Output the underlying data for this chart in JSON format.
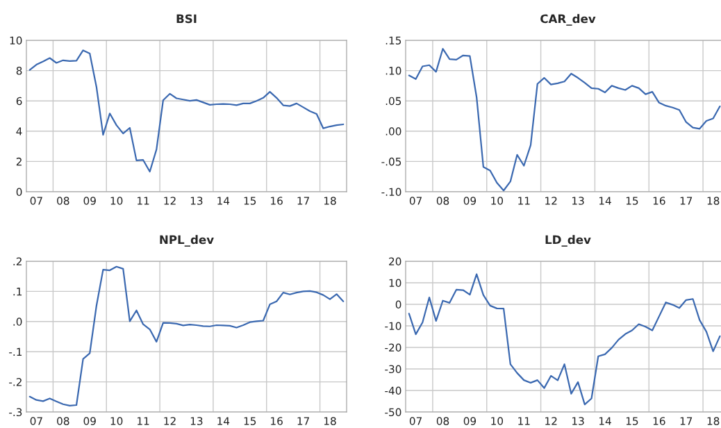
{
  "chart_data": [
    {
      "type": "line",
      "title": "BSI",
      "categories": [
        null,
        "07",
        null,
        null,
        null,
        "08",
        null,
        null,
        null,
        "09",
        null,
        null,
        null,
        "10",
        null,
        null,
        null,
        "11",
        null,
        null,
        null,
        "12",
        null,
        null,
        null,
        "13",
        null,
        null,
        null,
        "14",
        null,
        null,
        null,
        "15",
        null,
        null,
        null,
        "16",
        null,
        null,
        null,
        "17",
        null,
        null,
        null,
        "18",
        null,
        null
      ],
      "series": [
        {
          "color": "#3a68b0",
          "values": [
            8.04,
            8.39,
            8.6,
            8.83,
            8.51,
            8.68,
            8.63,
            8.65,
            9.34,
            9.13,
            6.93,
            3.76,
            5.17,
            4.4,
            3.85,
            4.22,
            2.07,
            2.1,
            1.33,
            2.79,
            6.04,
            6.47,
            6.17,
            6.09,
            6.0,
            6.06,
            5.9,
            5.74,
            5.78,
            5.8,
            5.78,
            5.72,
            5.83,
            5.83,
            6.0,
            6.2,
            6.6,
            6.2,
            5.71,
            5.66,
            5.83,
            5.58,
            5.32,
            5.14,
            4.19,
            4.31,
            4.4,
            4.45
          ]
        }
      ],
      "ylim": [
        0,
        10
      ],
      "yticks": [
        0,
        2,
        4,
        6,
        8,
        10
      ],
      "grid": true,
      "line_style": "solid"
    },
    {
      "type": "line",
      "title": "CAR_dev",
      "categories": [
        null,
        "07",
        null,
        null,
        null,
        "08",
        null,
        null,
        null,
        "09",
        null,
        null,
        null,
        "10",
        null,
        null,
        null,
        "11",
        null,
        null,
        null,
        "12",
        null,
        null,
        null,
        "13",
        null,
        null,
        null,
        "14",
        null,
        null,
        null,
        "15",
        null,
        null,
        null,
        "16",
        null,
        null,
        null,
        "17",
        null,
        null,
        null,
        "18",
        null,
        null
      ],
      "series": [
        {
          "color": "#3a68b0",
          "values": [
            0.092,
            0.086,
            0.107,
            0.109,
            0.098,
            0.136,
            0.119,
            0.118,
            0.125,
            0.124,
            0.056,
            -0.059,
            -0.065,
            -0.085,
            -0.098,
            -0.083,
            -0.039,
            -0.057,
            -0.023,
            0.078,
            0.088,
            0.077,
            0.079,
            0.082,
            0.095,
            0.088,
            0.08,
            0.071,
            0.07,
            0.064,
            0.075,
            0.071,
            0.068,
            0.075,
            0.071,
            0.061,
            0.065,
            0.047,
            0.042,
            0.039,
            0.035,
            0.015,
            0.006,
            0.004,
            0.017,
            0.021,
            0.041,
            null
          ]
        }
      ],
      "ylim": [
        -0.1,
        0.15
      ],
      "yticks": [
        {
          "value": -0.1,
          "label": "-.10"
        },
        {
          "value": -0.05,
          "label": "-.05"
        },
        {
          "value": 0,
          "label": ".00"
        },
        {
          "value": 0.05,
          "label": ".05"
        },
        {
          "value": 0.1,
          "label": ".10"
        },
        {
          "value": 0.15,
          "label": ".15"
        }
      ],
      "grid": true,
      "line_style": "solid"
    },
    {
      "type": "line",
      "title": "NPL_dev",
      "categories": [
        null,
        "07",
        null,
        null,
        null,
        "08",
        null,
        null,
        null,
        "09",
        null,
        null,
        null,
        "10",
        null,
        null,
        null,
        "11",
        null,
        null,
        null,
        "12",
        null,
        null,
        null,
        "13",
        null,
        null,
        null,
        "14",
        null,
        null,
        null,
        "15",
        null,
        null,
        null,
        "16",
        null,
        null,
        null,
        "17",
        null,
        null,
        null,
        "18",
        null,
        null
      ],
      "series": [
        {
          "color": "#3a68b0",
          "values": [
            -0.249,
            -0.26,
            -0.264,
            -0.255,
            -0.265,
            -0.274,
            -0.279,
            -0.277,
            -0.124,
            -0.105,
            0.052,
            0.172,
            0.17,
            0.182,
            0.175,
            0.001,
            0.037,
            -0.009,
            -0.026,
            -0.067,
            -0.004,
            -0.005,
            -0.007,
            -0.013,
            -0.01,
            -0.012,
            -0.015,
            -0.016,
            -0.012,
            -0.013,
            -0.014,
            -0.02,
            -0.012,
            -0.002,
            0.001,
            0.003,
            0.057,
            0.067,
            0.096,
            0.09,
            0.096,
            0.1,
            0.101,
            0.097,
            0.088,
            0.074,
            0.091,
            0.067
          ]
        }
      ],
      "ylim": [
        -0.3,
        0.2
      ],
      "yticks": [
        {
          "value": -0.3,
          "label": "-.3"
        },
        {
          "value": -0.2,
          "label": "-.2"
        },
        {
          "value": -0.1,
          "label": "-.1"
        },
        {
          "value": 0,
          "label": ".0"
        },
        {
          "value": 0.1,
          "label": ".1"
        },
        {
          "value": 0.2,
          "label": ".2"
        }
      ],
      "grid": true,
      "line_style": "solid"
    },
    {
      "type": "line",
      "title": "LD_dev",
      "categories": [
        null,
        "07",
        null,
        null,
        null,
        "08",
        null,
        null,
        null,
        "09",
        null,
        null,
        null,
        "10",
        null,
        null,
        null,
        "11",
        null,
        null,
        null,
        "12",
        null,
        null,
        null,
        "13",
        null,
        null,
        null,
        "14",
        null,
        null,
        null,
        "15",
        null,
        null,
        null,
        "16",
        null,
        null,
        null,
        "17",
        null,
        null,
        null,
        "18",
        null,
        null
      ],
      "series": [
        {
          "color": "#3a68b0",
          "values": [
            -4.3,
            -13.9,
            -8.4,
            3.2,
            -7.7,
            1.7,
            0.7,
            6.8,
            6.6,
            4.5,
            14.0,
            4.3,
            -0.6,
            -1.9,
            -2.0,
            -27.8,
            -31.9,
            -35.2,
            -36.4,
            -35.2,
            -38.9,
            -33.2,
            -35.3,
            -27.8,
            -41.5,
            -36.1,
            -46.5,
            -43.7,
            -24.1,
            -23.2,
            -20.2,
            -16.4,
            -13.8,
            -12.1,
            -9.2,
            -10.4,
            -12.1,
            -5.6,
            0.9,
            -0.2,
            -1.7,
            2.0,
            2.5,
            -7.3,
            -12.7,
            -21.8,
            -14.8,
            null
          ]
        }
      ],
      "ylim": [
        -50,
        20
      ],
      "yticks": [
        -50,
        -40,
        -30,
        -20,
        -10,
        0,
        10,
        20
      ],
      "grid": true,
      "line_style": "solid"
    }
  ]
}
